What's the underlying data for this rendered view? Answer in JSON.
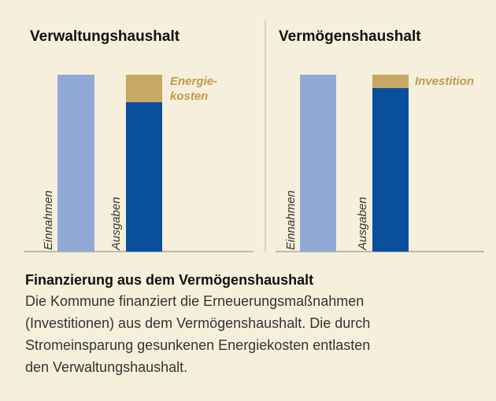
{
  "panels": [
    {
      "title": "Verwaltungshaushalt",
      "income_label": "Einnahmen",
      "expense_label": "Ausgaben",
      "note_lines": [
        "Energie-",
        "kosten"
      ]
    },
    {
      "title": "Vermögenshaushalt",
      "income_label": "Einnahmen",
      "expense_label": "Ausgaben",
      "note_lines": [
        "Investition"
      ]
    }
  ],
  "text": {
    "heading": "Finanzierung aus dem Vermögenshaushalt",
    "body_lines": [
      "Die Kommune finanziert die Erneuerungsmaßnahmen",
      "(Investitionen) aus dem Vermögenshaushalt. Die durch",
      "Stromeinsparung gesunkenen Energiekosten entlasten",
      "den Verwaltungshaushalt."
    ]
  }
}
